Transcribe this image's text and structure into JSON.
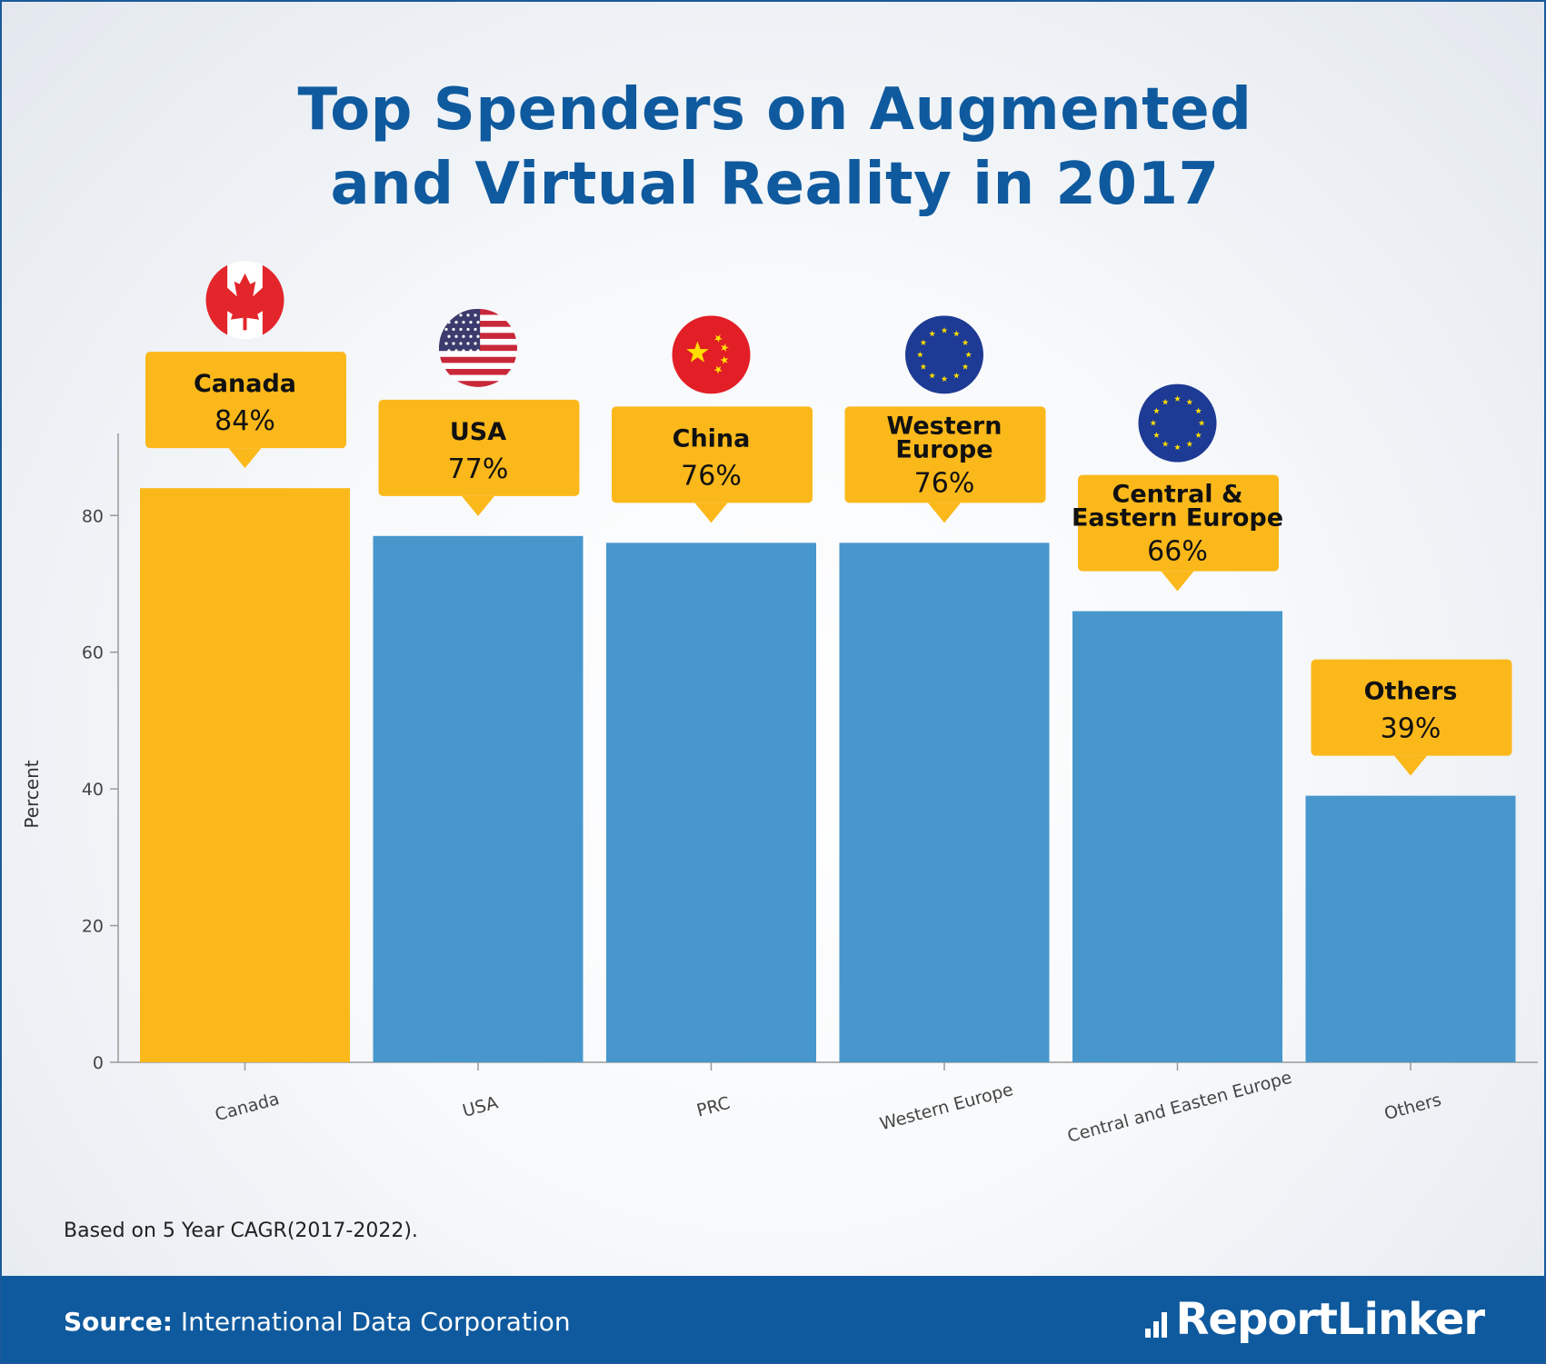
{
  "title_line1": "Top Spenders on Augmented",
  "title_line2": "and Virtual Reality in 2017",
  "note": "Based on 5 Year CAGR(2017-2022).",
  "source_label": "Source:",
  "source_text": " International Data Corporation",
  "logo_text": "ReportLinker",
  "colors": {
    "highlight": "#fbb81b",
    "bar": "#4797cd",
    "title": "#0f5a9e",
    "footer": "#0f5a9e"
  },
  "chart_data": {
    "type": "bar",
    "categories": [
      "Canada",
      "USA",
      "PRC",
      "Western Europe",
      "Central and Easten Europe",
      "Others"
    ],
    "values": [
      84,
      77,
      76,
      76,
      66,
      39
    ],
    "highlight_index": 0,
    "ylabel": "Percent",
    "xlabel": "",
    "ylim": [
      0,
      92
    ],
    "yticks": [
      0,
      20,
      40,
      60,
      80
    ],
    "callouts": [
      {
        "name": "Canada",
        "value": "84%",
        "flag": "canada-flag-icon"
      },
      {
        "name": "USA",
        "value": "77%",
        "flag": "usa-flag-icon"
      },
      {
        "name": "China",
        "value": "76%",
        "flag": "china-flag-icon"
      },
      {
        "name": "Western Europe",
        "value": "76%",
        "flag": "eu-flag-icon"
      },
      {
        "name": "Central & Eastern Europe",
        "value": "66%",
        "flag": "eu-flag-icon"
      },
      {
        "name": "Others",
        "value": "39%",
        "flag": ""
      }
    ]
  }
}
